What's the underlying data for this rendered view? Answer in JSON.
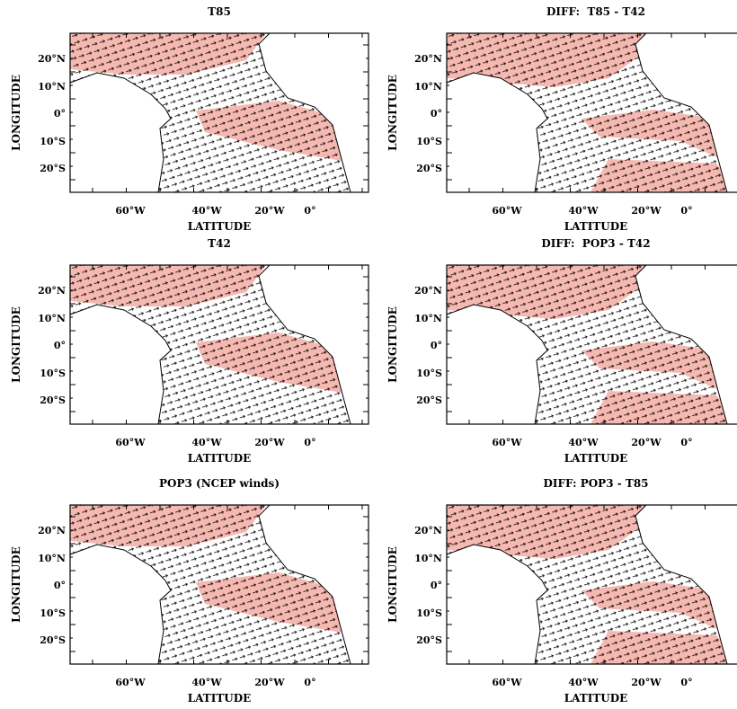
{
  "panels": [
    {
      "title": "T85",
      "x_label": "LATITUDE",
      "y_label": "LONGITUDE",
      "x_tick_labels": [
        "60°W",
        "40°W",
        "20°W",
        "0°"
      ],
      "y_tick_labels": [
        "20°N",
        "10°N",
        "0°",
        "10°S",
        "20°S"
      ]
    },
    {
      "title": "DIFF:  T85 - T42",
      "x_label": "LATITUDE",
      "y_label": "LONGITUDE",
      "x_tick_labels": [
        "60°W",
        "40°W",
        "20°W",
        "0°"
      ],
      "y_tick_labels": [
        "20°N",
        "10°N",
        "0°",
        "10°S",
        "20°S"
      ]
    },
    {
      "title": "T42",
      "x_label": "LATITUDE",
      "y_label": "LONGITUDE",
      "x_tick_labels": [
        "60°W",
        "40°W",
        "20°W",
        "0°"
      ],
      "y_tick_labels": [
        "20°N",
        "10°N",
        "0°",
        "10°S",
        "20°S"
      ]
    },
    {
      "title": "DIFF:  POP3 - T42",
      "x_label": "LATITUDE",
      "y_label": "LONGITUDE",
      "x_tick_labels": [
        "60°W",
        "40°W",
        "20°W",
        "0°"
      ],
      "y_tick_labels": [
        "20°N",
        "10°N",
        "0°",
        "10°S",
        "20°S"
      ]
    },
    {
      "title": "POP3 (NCEP winds)",
      "x_label": "LATITUDE",
      "y_label": "LONGITUDE",
      "x_tick_labels": [
        "60°W",
        "40°W",
        "20°W",
        "0°"
      ],
      "y_tick_labels": [
        "20°N",
        "10°N",
        "0°",
        "10°S",
        "20°S"
      ]
    },
    {
      "title": "DIFF: POP3 - T85",
      "x_label": "LATITUDE",
      "y_label": "LONGITUDE",
      "x_tick_labels": [
        "60°W",
        "40°W",
        "20°W",
        "0°"
      ],
      "y_tick_labels": [
        "20°N",
        "10°N",
        "0°",
        "10°S",
        "20°S"
      ]
    }
  ]
}
